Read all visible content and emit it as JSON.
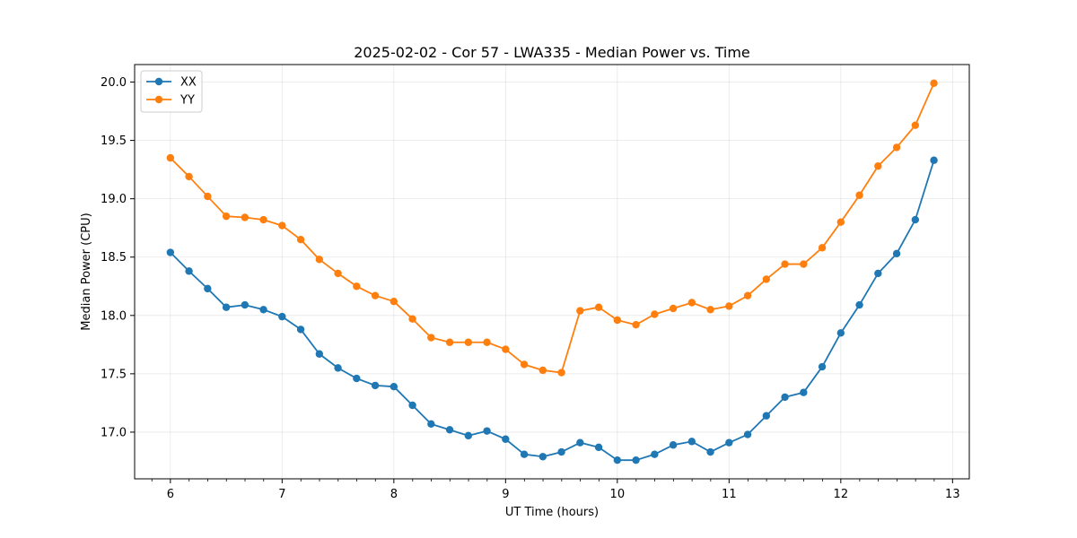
{
  "chart_data": {
    "type": "line",
    "title": "2025-02-02 - Cor 57 - LWA335 - Median Power vs. Time",
    "xlabel": "UT Time (hours)",
    "ylabel": "Median Power (CPU)",
    "xlim": [
      5.68,
      13.15
    ],
    "ylim": [
      16.6,
      20.15
    ],
    "xticks": [
      6,
      7,
      8,
      9,
      10,
      11,
      12,
      13
    ],
    "xtick_labels": [
      "6",
      "7",
      "8",
      "9",
      "10",
      "11",
      "12",
      "13"
    ],
    "xminor_step": 0.1667,
    "yticks": [
      17.0,
      17.5,
      18.0,
      18.5,
      19.0,
      19.5,
      20.0
    ],
    "ytick_labels": [
      "17.0",
      "17.5",
      "18.0",
      "18.5",
      "19.0",
      "19.5",
      "20.0"
    ],
    "grid": true,
    "legend_position": "top-left",
    "x": [
      6.0,
      6.1667,
      6.3333,
      6.5,
      6.6667,
      6.8333,
      7.0,
      7.1667,
      7.3333,
      7.5,
      7.6667,
      7.8333,
      8.0,
      8.1667,
      8.3333,
      8.5,
      8.6667,
      8.8333,
      9.0,
      9.1667,
      9.3333,
      9.5,
      9.6667,
      9.8333,
      10.0,
      10.1667,
      10.3333,
      10.5,
      10.6667,
      10.8333,
      11.0,
      11.1667,
      11.3333,
      11.5,
      11.6667,
      11.8333,
      12.0,
      12.1667,
      12.3333,
      12.5,
      12.6667,
      12.8333
    ],
    "series": [
      {
        "name": "XX",
        "color": "#1f77b4",
        "values": [
          18.54,
          18.38,
          18.23,
          18.07,
          18.09,
          18.05,
          17.99,
          17.88,
          17.67,
          17.55,
          17.46,
          17.4,
          17.39,
          17.23,
          17.07,
          17.02,
          16.97,
          17.01,
          16.94,
          16.81,
          16.79,
          16.83,
          16.91,
          16.87,
          16.76,
          16.76,
          16.81,
          16.89,
          16.92,
          16.83,
          16.91,
          16.98,
          17.14,
          17.3,
          17.34,
          17.56,
          17.85,
          18.09,
          18.36,
          18.53,
          18.82,
          19.33
        ]
      },
      {
        "name": "YY",
        "color": "#ff7f0e",
        "values": [
          19.35,
          19.19,
          19.02,
          18.85,
          18.84,
          18.82,
          18.77,
          18.65,
          18.48,
          18.36,
          18.25,
          18.17,
          18.12,
          17.97,
          17.81,
          17.77,
          17.77,
          17.77,
          17.71,
          17.58,
          17.53,
          17.51,
          18.04,
          18.07,
          17.96,
          17.92,
          18.01,
          18.06,
          18.11,
          18.05,
          18.08,
          18.17,
          18.31,
          18.44,
          18.44,
          18.58,
          18.8,
          19.03,
          19.28,
          19.44,
          19.63,
          19.99
        ]
      }
    ]
  }
}
